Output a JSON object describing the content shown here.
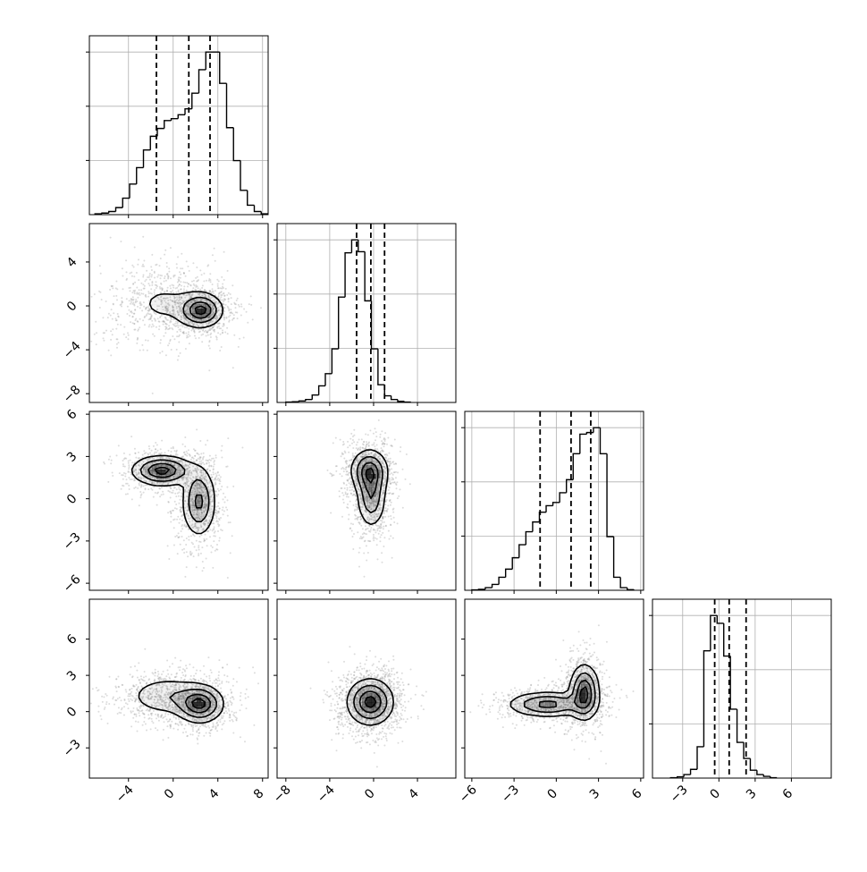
{
  "chart_data": {
    "type": "corner",
    "title": "",
    "variables": [
      {
        "label": "",
        "range": [
          -7.5,
          8.5
        ],
        "ticks": [
          -4,
          0,
          4,
          8
        ],
        "tick_labels": [
          "−4",
          "0",
          "4",
          "8"
        ]
      },
      {
        "label": "",
        "range": [
          -8.8,
          7.5
        ],
        "ticks": [
          -8,
          -4,
          0,
          4
        ],
        "tick_labels": [
          "−8",
          "−4",
          "0",
          "4"
        ]
      },
      {
        "label": "",
        "range": [
          -6.5,
          6.2
        ],
        "ticks": [
          -6,
          -3,
          0,
          3,
          6
        ],
        "tick_labels": [
          "−6",
          "−3",
          "0",
          "3",
          "6"
        ]
      },
      {
        "label": "",
        "range": [
          -5.5,
          9.3
        ],
        "ticks": [
          -3,
          0,
          3,
          6
        ],
        "tick_labels": [
          "−3",
          "0",
          "3",
          "6"
        ]
      }
    ],
    "grid": true,
    "histograms": [
      {
        "variable": 0,
        "bin_start": -7,
        "bin_width": 0.62,
        "counts": [
          2,
          4,
          8,
          18,
          42,
          78,
          120,
          165,
          200,
          220,
          240,
          245,
          255,
          270,
          310,
          370,
          415,
          415,
          335,
          222,
          138,
          62,
          24,
          8,
          2
        ],
        "quantiles": [
          -1.5,
          1.4,
          3.3
        ]
      },
      {
        "variable": 1,
        "bin_start": -8,
        "bin_width": 0.6,
        "counts": [
          1,
          2,
          4,
          8,
          20,
          45,
          78,
          145,
          285,
          405,
          440,
          408,
          275,
          145,
          48,
          18,
          8,
          3,
          1
        ],
        "quantiles": [
          -1.55,
          -0.25,
          1.0
        ]
      },
      {
        "variable": 2,
        "bin_start": -6,
        "bin_width": 0.48,
        "counts": [
          1,
          3,
          8,
          18,
          40,
          65,
          100,
          140,
          180,
          210,
          240,
          260,
          270,
          300,
          340,
          420,
          480,
          485,
          500,
          420,
          165,
          40,
          8,
          2
        ],
        "quantiles": [
          -1.15,
          1.05,
          2.45
        ]
      },
      {
        "variable": 3,
        "bin_start": -4,
        "bin_width": 0.55,
        "counts": [
          1,
          3,
          8,
          20,
          72,
          292,
          373,
          355,
          280,
          158,
          82,
          45,
          18,
          8,
          4,
          1
        ],
        "quantiles": [
          -0.35,
          0.85,
          2.25
        ]
      }
    ],
    "pairs": [
      {
        "x": 1,
        "y": 0,
        "components": [
          {
            "mx": -0.8,
            "my": 0.2,
            "sx": 2.2,
            "sy": 1.5,
            "rho": 0.0,
            "w": 0.45
          },
          {
            "mx": 2.5,
            "my": -0.4,
            "sx": 1.0,
            "sy": 0.8,
            "rho": 0.0,
            "w": 0.55
          }
        ]
      },
      {
        "x": 2,
        "y": 0,
        "components": [
          {
            "mx": -1.0,
            "my": 2.0,
            "sx": 1.4,
            "sy": 0.55,
            "rho": 0.0,
            "w": 0.5
          },
          {
            "mx": 2.3,
            "my": -0.2,
            "sx": 0.8,
            "sy": 1.3,
            "rho": 0.0,
            "w": 0.5
          }
        ]
      },
      {
        "x": 2,
        "y": 1,
        "components": [
          {
            "mx": -0.4,
            "my": 2.0,
            "sx": 0.9,
            "sy": 0.8,
            "rho": 0.0,
            "w": 0.5
          },
          {
            "mx": -0.2,
            "my": 0.2,
            "sx": 0.7,
            "sy": 1.2,
            "rho": 0.0,
            "w": 0.5
          }
        ]
      },
      {
        "x": 3,
        "y": 0,
        "components": [
          {
            "mx": -0.5,
            "my": 1.3,
            "sx": 2.0,
            "sy": 0.9,
            "rho": 0.0,
            "w": 0.45
          },
          {
            "mx": 2.4,
            "my": 0.6,
            "sx": 1.1,
            "sy": 0.8,
            "rho": 0.0,
            "w": 0.55
          }
        ]
      },
      {
        "x": 3,
        "y": 1,
        "components": [
          {
            "mx": -0.3,
            "my": 0.8,
            "sx": 1.1,
            "sy": 1.0,
            "rho": 0.0,
            "w": 1.0
          }
        ]
      },
      {
        "x": 3,
        "y": 2,
        "components": [
          {
            "mx": -0.6,
            "my": 0.6,
            "sx": 1.5,
            "sy": 0.55,
            "rho": 0.0,
            "w": 0.5
          },
          {
            "mx": 2.0,
            "my": 1.6,
            "sx": 0.55,
            "sy": 1.2,
            "rho": 0.0,
            "w": 0.5
          }
        ]
      }
    ],
    "colors": {
      "line": "#000000",
      "grid": "#b0b0b0",
      "points": "#9a9a9a",
      "density_fill": "#000000"
    }
  }
}
